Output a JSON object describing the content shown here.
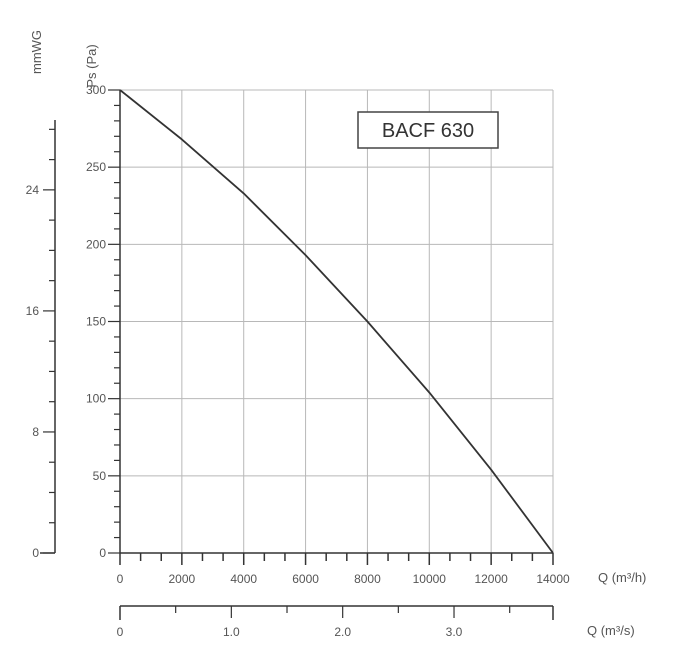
{
  "chart_data": {
    "type": "line",
    "title": "",
    "model_label": "BACF 630",
    "x_label": "Q (m³/h)",
    "y_label": "Ps (Pa)",
    "secondary_y_label": "mmWG",
    "secondary_x_label": "Q (m³/s)",
    "xlim": [
      0,
      14000
    ],
    "ylim": [
      0,
      300
    ],
    "x_ticks": [
      0,
      2000,
      4000,
      6000,
      8000,
      10000,
      12000,
      14000
    ],
    "x_tick_labels": [
      "0",
      "2000",
      "4000",
      "6000",
      "8000",
      "10000",
      "12000",
      "14000"
    ],
    "y_ticks": [
      0,
      50,
      100,
      150,
      200,
      250,
      300
    ],
    "y_tick_labels": [
      "0",
      "50",
      "100",
      "150",
      "200",
      "250",
      "300"
    ],
    "secondary_y_ticks": [
      0,
      8,
      16,
      24
    ],
    "secondary_y_tick_labels": [
      "0",
      "8",
      "16",
      "24"
    ],
    "secondary_ylim": [
      0,
      30.6
    ],
    "secondary_x_ticks": [
      0,
      1.0,
      2.0,
      3.0
    ],
    "secondary_x_tick_labels": [
      "0",
      "1.0",
      "2.0",
      "3.0"
    ],
    "secondary_xlim": [
      0,
      3.889
    ],
    "grid": true,
    "colors": {
      "curve": "#333333",
      "grid": "#b8b8b8",
      "axis": "#333333",
      "text": "#555555"
    },
    "series": [
      {
        "x": [
          0,
          2000,
          4000,
          6000,
          8000,
          10000,
          12000,
          14000
        ],
        "y": [
          300,
          268,
          233,
          193,
          150,
          104,
          54,
          0
        ]
      }
    ]
  }
}
